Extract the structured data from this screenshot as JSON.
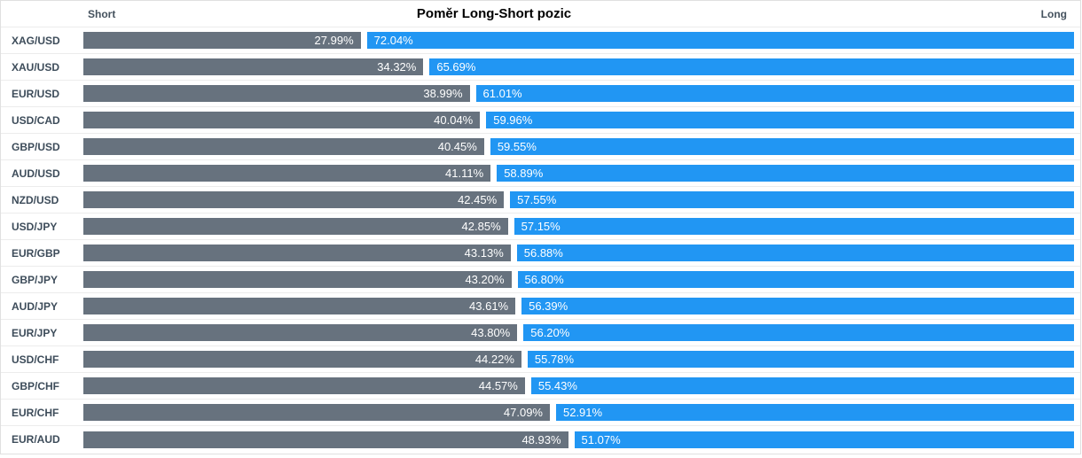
{
  "header": {
    "short_label": "Short",
    "title": "Poměr Long-Short pozic",
    "long_label": "Long"
  },
  "colors": {
    "short_bar": "#67727E",
    "long_bar": "#2196F3",
    "pair_label_text": "#3D4C5A",
    "bar_value_text": "#FFFFFF",
    "row_border": "#ECECEC",
    "outer_border": "#E0E0E0"
  },
  "chart_data": {
    "type": "bar",
    "orientation": "horizontal-paired",
    "title": "Poměr Long-Short pozic",
    "legend": [
      "Short",
      "Long"
    ],
    "legend_position": "top-left-and-top-right",
    "grid": false,
    "value_unit": "%",
    "value_range": [
      0,
      100
    ],
    "categories": [
      "XAG/USD",
      "XAU/USD",
      "EUR/USD",
      "USD/CAD",
      "GBP/USD",
      "AUD/USD",
      "NZD/USD",
      "USD/JPY",
      "EUR/GBP",
      "GBP/JPY",
      "AUD/JPY",
      "EUR/JPY",
      "USD/CHF",
      "GBP/CHF",
      "EUR/CHF",
      "EUR/AUD"
    ],
    "series": [
      {
        "name": "Short",
        "color": "#67727E",
        "values": [
          27.99,
          34.32,
          38.99,
          40.04,
          40.45,
          41.11,
          42.45,
          42.85,
          43.13,
          43.2,
          43.61,
          43.8,
          44.22,
          44.57,
          47.09,
          48.93
        ]
      },
      {
        "name": "Long",
        "color": "#2196F3",
        "values": [
          72.04,
          65.69,
          61.01,
          59.96,
          59.55,
          58.89,
          57.55,
          57.15,
          56.88,
          56.8,
          56.39,
          56.2,
          55.78,
          55.43,
          52.91,
          51.07
        ]
      }
    ]
  }
}
